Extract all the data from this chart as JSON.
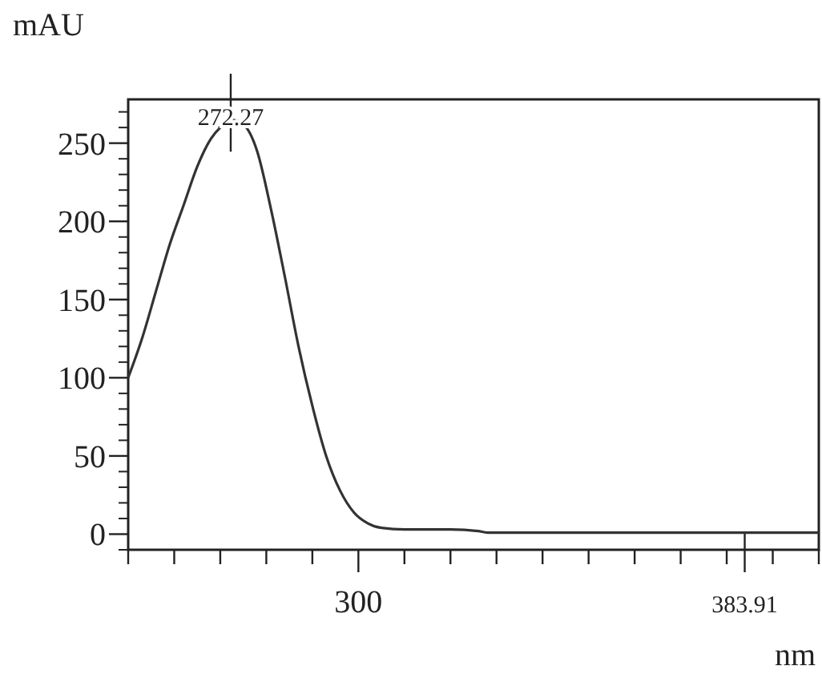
{
  "chart_data": {
    "type": "line",
    "xlabel": "nm",
    "ylabel": "mAU",
    "xlim": [
      250,
      400
    ],
    "ylim": [
      -10,
      278
    ],
    "xticks": [
      {
        "value": 250,
        "label": null
      },
      {
        "value": 260,
        "label": null
      },
      {
        "value": 270,
        "label": null
      },
      {
        "value": 280,
        "label": null
      },
      {
        "value": 290,
        "label": null
      },
      {
        "value": 300,
        "label": "300"
      },
      {
        "value": 310,
        "label": null
      },
      {
        "value": 320,
        "label": null
      },
      {
        "value": 330,
        "label": null
      },
      {
        "value": 340,
        "label": null
      },
      {
        "value": 350,
        "label": null
      },
      {
        "value": 360,
        "label": null
      },
      {
        "value": 370,
        "label": null
      },
      {
        "value": 380,
        "label": null
      },
      {
        "value": 383.91,
        "label": "383.91"
      },
      {
        "value": 390,
        "label": null
      },
      {
        "value": 400,
        "label": null
      }
    ],
    "annotations": [
      {
        "text": "272.27",
        "x": 272.27,
        "y": 265
      }
    ],
    "yticks": [
      0,
      50,
      100,
      150,
      200,
      250
    ],
    "series": [
      {
        "color": "#333333",
        "x": [
          250,
          253,
          256,
          259,
          262,
          265,
          268,
          270,
          272.27,
          275,
          278,
          281,
          284,
          287,
          290,
          293,
          296,
          299,
          302,
          305,
          310,
          320,
          326,
          328,
          350,
          400
        ],
        "values": [
          100,
          125,
          155,
          185,
          210,
          235,
          253,
          260,
          265,
          262,
          245,
          208,
          165,
          120,
          82,
          50,
          28,
          14,
          7,
          4,
          3,
          3,
          2,
          1,
          1,
          1
        ]
      }
    ],
    "grid": false,
    "marker": "none",
    "line_style": "solid"
  }
}
